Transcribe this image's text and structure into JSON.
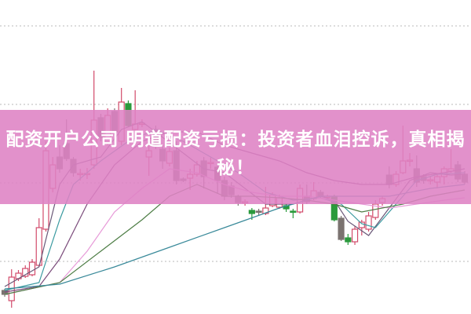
{
  "headline": "配资开户公司 明道配资亏损：投资者血泪控诉，真相揭秘！",
  "colors": {
    "up": "#d24a6a",
    "down": "#7b7370",
    "green": "#2a9a3c",
    "grid": "#b8b8b8",
    "banner": "#e08fc8"
  },
  "chart_data": {
    "type": "candlestick",
    "title": "",
    "xlabel": "",
    "ylabel": "",
    "grid": "horizontal dotted",
    "note_kind": "u = rising (hollow red), d = falling (filled gray), g = green",
    "ylim": [
      0,
      380
    ],
    "gridlines": [
      67,
      167,
      267,
      367
    ],
    "candles": [
      [
        30,
        25,
        32,
        22,
        "d"
      ],
      [
        17,
        47,
        57,
        8,
        "u"
      ],
      [
        45,
        52,
        56,
        42,
        "u"
      ],
      [
        48,
        58,
        62,
        46,
        "u"
      ],
      [
        50,
        66,
        70,
        48,
        "u"
      ],
      [
        62,
        110,
        122,
        60,
        "u"
      ],
      [
        108,
        208,
        220,
        105,
        "u"
      ],
      [
        160,
        190,
        200,
        155,
        "u"
      ],
      [
        200,
        185,
        215,
        180,
        "d"
      ],
      [
        217,
        198,
        248,
        195,
        "d"
      ],
      [
        197,
        180,
        200,
        175,
        "d"
      ],
      [
        178,
        179,
        185,
        170,
        "u"
      ],
      [
        178,
        179,
        186,
        172,
        "u"
      ],
      [
        190,
        247,
        310,
        185,
        "u"
      ],
      [
        250,
        225,
        255,
        220,
        "d"
      ],
      [
        217,
        253,
        262,
        215,
        "u"
      ],
      [
        258,
        232,
        262,
        228,
        "d"
      ],
      [
        220,
        270,
        288,
        215,
        "u"
      ],
      [
        268,
        240,
        272,
        238,
        "g"
      ],
      [
        235,
        242,
        285,
        230,
        "u"
      ],
      [
        243,
        242,
        248,
        238,
        "u"
      ],
      [
        200,
        208,
        215,
        176,
        "u"
      ],
      [
        235,
        215,
        240,
        210,
        "d"
      ],
      [
        210,
        195,
        215,
        185,
        "d"
      ],
      [
        192,
        207,
        212,
        188,
        "u"
      ],
      [
        208,
        170,
        220,
        165,
        "d"
      ],
      [
        170,
        172,
        174,
        168,
        "d"
      ],
      [
        173,
        178,
        185,
        158,
        "u"
      ],
      [
        178,
        190,
        195,
        175,
        "u"
      ],
      [
        195,
        175,
        200,
        160,
        "d"
      ],
      [
        193,
        192,
        200,
        185,
        "u"
      ],
      [
        187,
        170,
        190,
        153,
        "d"
      ],
      [
        170,
        150,
        175,
        145,
        "d"
      ],
      [
        163,
        152,
        168,
        148,
        "d"
      ],
      [
        150,
        142,
        152,
        138,
        "d"
      ],
      [
        142,
        143,
        146,
        138,
        "u"
      ],
      [
        132,
        128,
        135,
        120,
        "g"
      ],
      [
        130,
        131,
        134,
        126,
        "d"
      ],
      [
        128,
        135,
        162,
        126,
        "u"
      ],
      [
        138,
        152,
        155,
        136,
        "u"
      ],
      [
        136,
        148,
        152,
        134,
        "u"
      ],
      [
        138,
        134,
        140,
        130,
        "g"
      ],
      [
        131,
        130,
        134,
        122,
        "g"
      ],
      [
        130,
        160,
        165,
        128,
        "u"
      ],
      [
        150,
        143,
        165,
        140,
        "d"
      ],
      [
        147,
        157,
        168,
        145,
        "u"
      ],
      [
        155,
        150,
        158,
        148,
        "d"
      ],
      [
        149,
        150,
        152,
        146,
        "u"
      ],
      [
        150,
        120,
        152,
        118,
        "g"
      ],
      [
        122,
        95,
        125,
        93,
        "d"
      ],
      [
        97,
        92,
        102,
        88,
        "g"
      ],
      [
        92,
        108,
        112,
        88,
        "u"
      ],
      [
        110,
        117,
        120,
        100,
        "u"
      ],
      [
        108,
        125,
        130,
        105,
        "u"
      ],
      [
        123,
        140,
        145,
        120,
        "u"
      ],
      [
        142,
        147,
        150,
        138,
        "u"
      ],
      [
        177,
        165,
        188,
        160,
        "d"
      ],
      [
        165,
        178,
        182,
        162,
        "u"
      ],
      [
        180,
        195,
        240,
        178,
        "u"
      ],
      [
        195,
        196,
        205,
        188,
        "u"
      ],
      [
        185,
        168,
        202,
        162,
        "d"
      ],
      [
        175,
        170,
        178,
        166,
        "d"
      ],
      [
        170,
        171,
        175,
        165,
        "u"
      ],
      [
        168,
        175,
        178,
        160,
        "u"
      ],
      [
        175,
        185,
        188,
        165,
        "u"
      ],
      [
        182,
        185,
        210,
        180,
        "u"
      ],
      [
        190,
        172,
        195,
        168,
        "d"
      ],
      [
        178,
        168,
        182,
        165,
        "d"
      ]
    ],
    "moving_averages": [
      {
        "color": "#6a5878",
        "points": [
          [
            0,
            35
          ],
          [
            5,
            60
          ],
          [
            8,
            165
          ],
          [
            10,
            190
          ],
          [
            14,
            200
          ],
          [
            17,
            235
          ],
          [
            20,
            245
          ],
          [
            23,
            225
          ],
          [
            26,
            205
          ],
          [
            29,
            185
          ],
          [
            32,
            180
          ],
          [
            35,
            160
          ],
          [
            38,
            140
          ],
          [
            42,
            140
          ],
          [
            46,
            150
          ],
          [
            48,
            145
          ],
          [
            50,
            118
          ],
          [
            53,
            100
          ],
          [
            56,
            135
          ],
          [
            59,
            170
          ],
          [
            62,
            180
          ],
          [
            65,
            177
          ],
          [
            67,
            178
          ]
        ]
      },
      {
        "color": "#3a9aa0",
        "points": [
          [
            0,
            30
          ],
          [
            5,
            40
          ],
          [
            8,
            120
          ],
          [
            10,
            165
          ],
          [
            14,
            195
          ],
          [
            18,
            220
          ],
          [
            22,
            235
          ],
          [
            26,
            220
          ],
          [
            30,
            200
          ],
          [
            34,
            180
          ],
          [
            38,
            155
          ],
          [
            42,
            145
          ],
          [
            46,
            148
          ],
          [
            49,
            140
          ],
          [
            52,
            115
          ],
          [
            54,
            110
          ],
          [
            57,
            140
          ],
          [
            60,
            170
          ],
          [
            63,
            178
          ],
          [
            67,
            180
          ]
        ]
      },
      {
        "color": "#7a4a7a",
        "points": [
          [
            0,
            28
          ],
          [
            5,
            35
          ],
          [
            8,
            70
          ],
          [
            12,
            140
          ],
          [
            16,
            190
          ],
          [
            20,
            220
          ],
          [
            24,
            232
          ],
          [
            28,
            232
          ],
          [
            32,
            215
          ],
          [
            36,
            205
          ],
          [
            40,
            195
          ],
          [
            44,
            180
          ],
          [
            48,
            170
          ],
          [
            52,
            165
          ],
          [
            56,
            165
          ],
          [
            60,
            175
          ],
          [
            64,
            180
          ],
          [
            67,
            185
          ]
        ]
      },
      {
        "color": "#e79ad8",
        "points": [
          [
            0,
            25
          ],
          [
            8,
            40
          ],
          [
            12,
            80
          ],
          [
            16,
            130
          ],
          [
            20,
            160
          ],
          [
            24,
            185
          ],
          [
            28,
            180
          ],
          [
            32,
            165
          ],
          [
            36,
            155
          ],
          [
            40,
            150
          ],
          [
            44,
            150
          ],
          [
            48,
            145
          ],
          [
            52,
            140
          ],
          [
            56,
            135
          ],
          [
            60,
            140
          ],
          [
            64,
            145
          ],
          [
            67,
            148
          ]
        ]
      },
      {
        "color": "#4d7d45",
        "points": [
          [
            0,
            25
          ],
          [
            8,
            40
          ],
          [
            14,
            80
          ],
          [
            20,
            120
          ],
          [
            24,
            150
          ],
          [
            28,
            165
          ],
          [
            32,
            150
          ],
          [
            36,
            150
          ],
          [
            40,
            148
          ],
          [
            44,
            145
          ],
          [
            48,
            140
          ],
          [
            52,
            130
          ],
          [
            58,
            140
          ],
          [
            62,
            150
          ],
          [
            67,
            158
          ]
        ]
      },
      {
        "color": "#3a8a9a",
        "points": [
          [
            0,
            32
          ],
          [
            8,
            38
          ],
          [
            16,
            60
          ],
          [
            24,
            85
          ],
          [
            32,
            110
          ],
          [
            40,
            135
          ],
          [
            46,
            150
          ],
          [
            50,
            150
          ],
          [
            56,
            150
          ],
          [
            62,
            160
          ],
          [
            67,
            165
          ]
        ]
      }
    ]
  }
}
